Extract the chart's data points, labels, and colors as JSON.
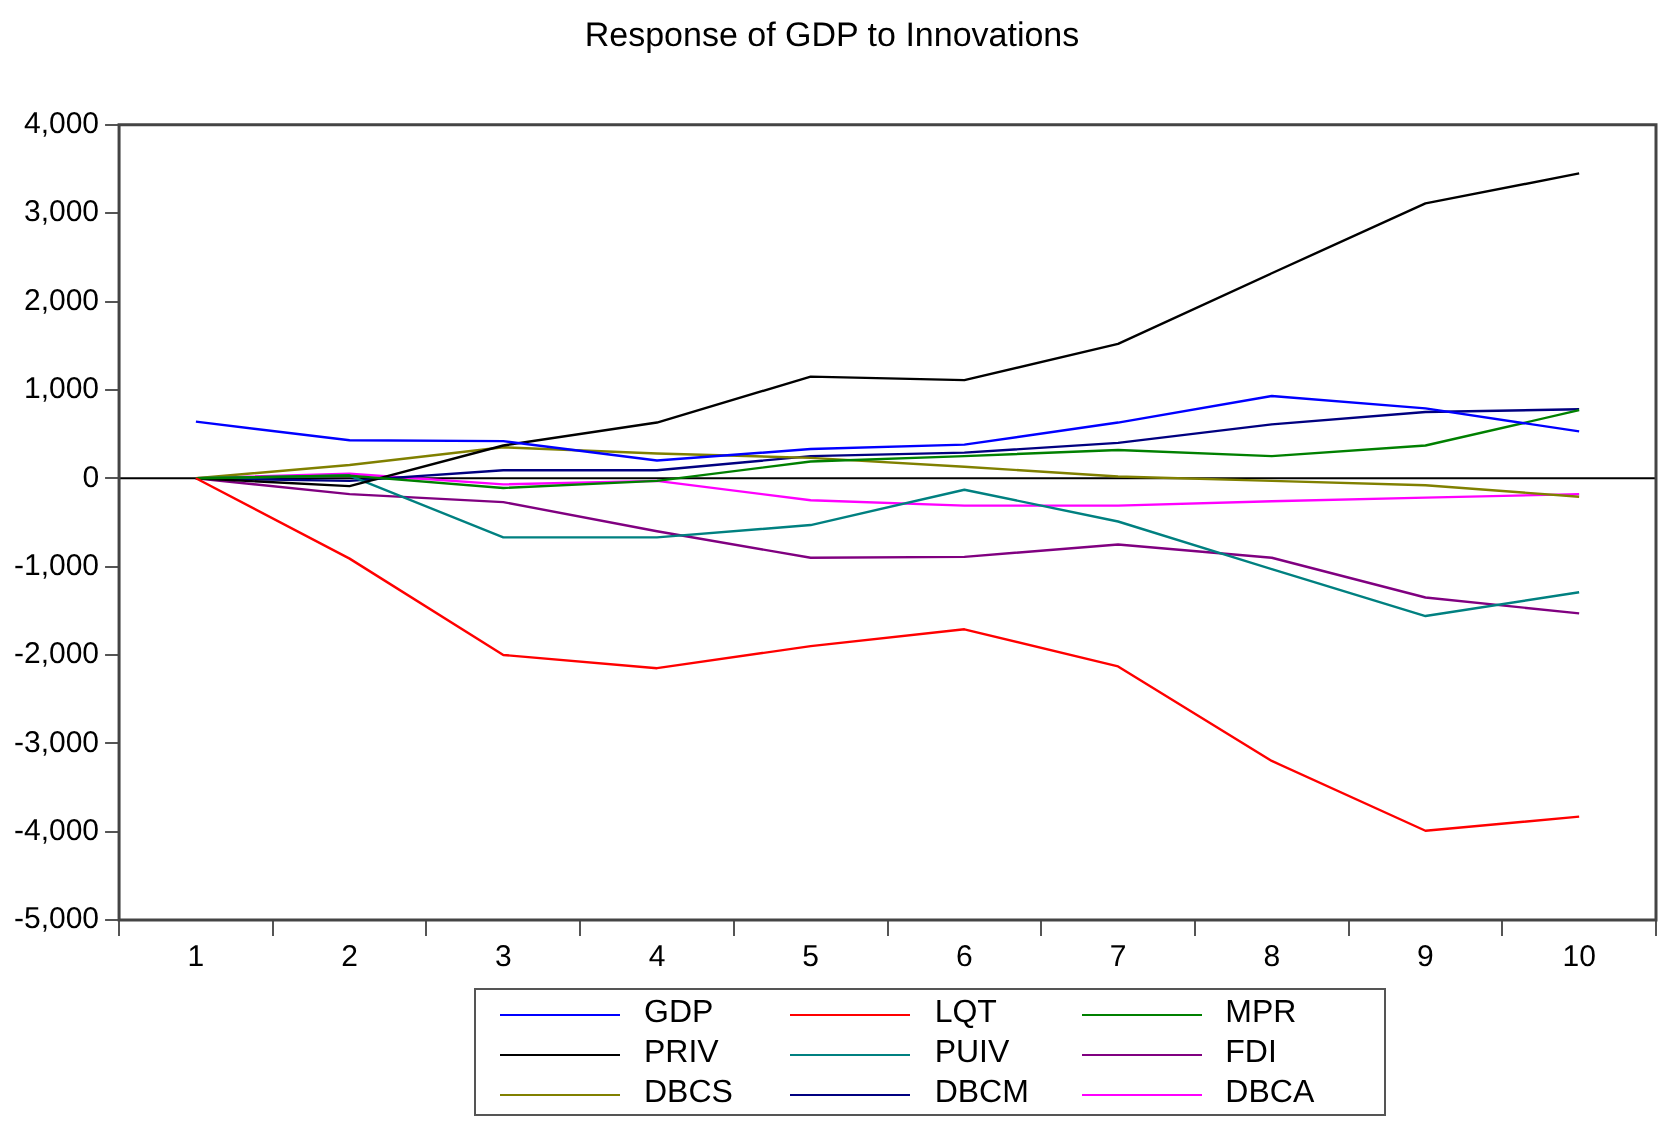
{
  "chart_data": {
    "type": "line",
    "title": "Response of GDP to Innovations",
    "categories": [
      "1",
      "2",
      "3",
      "4",
      "5",
      "6",
      "7",
      "8",
      "9",
      "10"
    ],
    "series": [
      {
        "name": "GDP",
        "color": "#0000ff",
        "values": [
          640,
          430,
          420,
          200,
          330,
          380,
          630,
          930,
          790,
          530
        ]
      },
      {
        "name": "LQT",
        "color": "#ff0000",
        "values": [
          0,
          -910,
          -2000,
          -2150,
          -1900,
          -1710,
          -2130,
          -3200,
          -3990,
          -3830
        ]
      },
      {
        "name": "MPR",
        "color": "#008000",
        "values": [
          0,
          30,
          -110,
          -30,
          190,
          250,
          320,
          250,
          370,
          770
        ]
      },
      {
        "name": "PRIV",
        "color": "#000000",
        "values": [
          0,
          -90,
          370,
          630,
          1150,
          1110,
          1520,
          2320,
          3110,
          3450
        ]
      },
      {
        "name": "PUIV",
        "color": "#008080",
        "values": [
          0,
          30,
          -670,
          -670,
          -530,
          -130,
          -490,
          -1030,
          -1560,
          -1290
        ]
      },
      {
        "name": "FDI",
        "color": "#800080",
        "values": [
          0,
          -180,
          -270,
          -600,
          -900,
          -890,
          -750,
          -900,
          -1350,
          -1530
        ]
      },
      {
        "name": "DBCS",
        "color": "#808000",
        "values": [
          0,
          150,
          350,
          280,
          230,
          130,
          20,
          -30,
          -80,
          -210
        ]
      },
      {
        "name": "DBCM",
        "color": "#000080",
        "values": [
          0,
          -30,
          90,
          90,
          250,
          290,
          400,
          610,
          750,
          780
        ]
      },
      {
        "name": "DBCA",
        "color": "#ff00ff",
        "values": [
          0,
          50,
          -70,
          -30,
          -250,
          -310,
          -310,
          -260,
          -220,
          -180
        ]
      }
    ],
    "ylim": [
      -5000,
      4000
    ],
    "yticks": [
      {
        "value": -5000,
        "label": "-5,000"
      },
      {
        "value": -4000,
        "label": "-4,000"
      },
      {
        "value": -3000,
        "label": "-3,000"
      },
      {
        "value": -2000,
        "label": "-2,000"
      },
      {
        "value": -1000,
        "label": "-1,000"
      },
      0,
      {
        "value": 1000,
        "label": "1,000"
      },
      {
        "value": 2000,
        "label": "2,000"
      },
      {
        "value": 3000,
        "label": "3,000"
      },
      {
        "value": 4000,
        "label": "4,000"
      }
    ],
    "ref_lines": [
      {
        "axis": "y",
        "value": 0,
        "color": "#000000"
      }
    ],
    "grid": false,
    "legend": "bottom",
    "marker": "none",
    "line_style": "solid"
  }
}
